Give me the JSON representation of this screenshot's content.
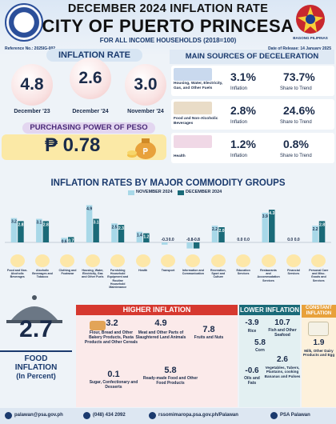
{
  "header": {
    "title_line1": "DECEMBER 2024 INFLATION RATE",
    "title_line2": "CITY OF PUERTO PRINCESA",
    "subtitle": "FOR ALL INCOME HOUSEHOLDS (2018=100)",
    "reference": "Reference No.: 2025IG-002",
    "release_date": "Date of Release: 14 January 2025",
    "right_logo_text": "BAGONG PILIPINAS"
  },
  "inflation_rate": {
    "heading": "INFLATION RATE",
    "items": [
      {
        "value": "4.8",
        "label": "December '23"
      },
      {
        "value": "2.6",
        "label": "December '24"
      },
      {
        "value": "3.0",
        "label": "November '24"
      }
    ]
  },
  "purchasing_power": {
    "heading": "PURCHASING POWER OF  PESO",
    "value": "₱ 0.78"
  },
  "deceleration": {
    "heading": "MAIN SOURCES OF DECELERATION",
    "rows": [
      {
        "label": "Housing, Water, Electricity, Gas, and Other Fuels",
        "inflation": "3.1%",
        "inflation_label": "Inflation",
        "share": "73.7%",
        "share_label": "Share to Trend"
      },
      {
        "label": "Food and Non-Alcoholic Beverages",
        "inflation": "2.8%",
        "inflation_label": "Inflation",
        "share": "24.6%",
        "share_label": "Share to Trend"
      },
      {
        "label": "Health",
        "inflation": "1.2%",
        "inflation_label": "Inflation",
        "share": "0.8%",
        "share_label": "Share to Trend"
      }
    ]
  },
  "chart_data": {
    "type": "bar",
    "title": "INFLATION RATES BY MAJOR COMMODITY GROUPS",
    "series": [
      {
        "name": "NOVEMBER 2024",
        "color": "#a8d8e8",
        "values": [
          3.2,
          3.1,
          0.6,
          4.9,
          2.5,
          1.4,
          -0.3,
          -0.8,
          2.2,
          0.0,
          3.9,
          0.0,
          2.2
        ]
      },
      {
        "name": "DECEMBER 2024",
        "color": "#1a6a78",
        "values": [
          2.8,
          2.8,
          0.7,
          3.1,
          2.3,
          1.2,
          0.0,
          -0.8,
          2.0,
          0.0,
          4.3,
          0.0,
          2.8
        ]
      }
    ],
    "labels": [
      [
        "3.2",
        "2.8"
      ],
      [
        "3.1",
        "2.8"
      ],
      [
        "0.6",
        "0.7"
      ],
      [
        "4.9",
        "3.1"
      ],
      [
        "2.5",
        "2.3"
      ],
      [
        "1.4",
        "1.2"
      ],
      [
        "-0.3",
        "0.0"
      ],
      [
        "-0.8",
        "-0.8"
      ],
      [
        "2.2",
        "2.0"
      ],
      [
        "0.0",
        "0.0"
      ],
      [
        "3.9",
        "4.3"
      ],
      [
        "0.0",
        "0.0"
      ],
      [
        "2.2",
        "2.8"
      ]
    ],
    "categories": [
      "Food and Non-Alcoholic Beverages",
      "Alcoholic Beverages and Tobacco",
      "Clothing and Footwear",
      "Housing, Water, Electricity, Gas and Other Fuels",
      "Furnishing Household Equipment and Routine Household Maintenance",
      "Health",
      "Transport",
      "Information and Communication",
      "Recreation, Sport and Culture",
      "Education Services",
      "Restaurants and Accommodation Services",
      "Financial Services",
      "Personal Care and Misc. Goods and Services"
    ]
  },
  "food_inflation": {
    "value": "2.7",
    "label_line1": "FOOD",
    "label_line2": "INFLATION",
    "label_line3": "(In Percent)"
  },
  "higher_inflation": {
    "heading": "HIGHER INFLATION",
    "items": [
      {
        "value": "3.2",
        "label": "Flour, Bread and Other Bakery Products, Pasta Products and Other Cereals"
      },
      {
        "value": "4.9",
        "label": "Meat and Other Parts of Slaughtered Land Animals"
      },
      {
        "value": "7.8",
        "label": "Fruits and Nuts"
      },
      {
        "value": "0.1",
        "label": "Sugar, Confectionary and Desserts"
      },
      {
        "value": "5.8",
        "label": "Ready-made Food and Other Food Products"
      }
    ]
  },
  "lower_inflation": {
    "heading": "LOWER INFLATION",
    "items": [
      {
        "value": "-3.9",
        "label": "Rice"
      },
      {
        "value": "10.7",
        "label": "Fish and Other Seafood"
      },
      {
        "value": "5.8",
        "label": "Corn"
      },
      {
        "value": "-0.6",
        "label": "Oils and Fats"
      },
      {
        "value": "2.6",
        "label": "Vegetables, Tubers, Plantains, cooking Bananas and Pulses"
      }
    ]
  },
  "constant_inflation": {
    "heading": "CONSTANT INFLATION",
    "items": [
      {
        "value": "1.9",
        "label": "Milk, Other Dairy Products and Egg"
      }
    ]
  },
  "footer": {
    "email": "palawan@psa.gov.ph",
    "phone": "(048) 434 2092",
    "website": "rssomimaropa.psa.gov.ph/Palawan",
    "facebook": "PSA Palawan"
  }
}
